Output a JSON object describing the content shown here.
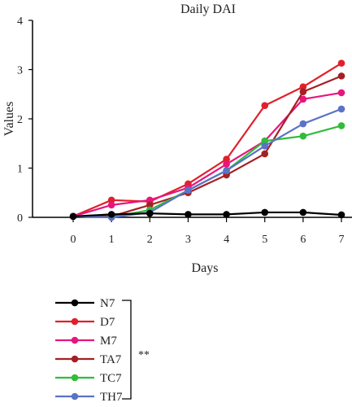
{
  "chart_data": {
    "type": "line",
    "title": "Daily DAI",
    "xlabel": "Days",
    "ylabel": "Values",
    "x": [
      0,
      1,
      2,
      3,
      4,
      5,
      6,
      7
    ],
    "xlim": [
      0,
      7
    ],
    "ylim": [
      0,
      4
    ],
    "yticks": [
      0,
      1,
      2,
      3,
      4
    ],
    "xticks": [
      0,
      1,
      2,
      3,
      4,
      5,
      6,
      7
    ],
    "grid": false,
    "legend_position": "bottom-left",
    "significance_label": "**",
    "series": [
      {
        "name": "N7",
        "color": "#000000",
        "values": [
          0.02,
          0.06,
          0.08,
          0.06,
          0.06,
          0.1,
          0.1,
          0.05
        ]
      },
      {
        "name": "D7",
        "color": "#e0202b",
        "values": [
          0.02,
          0.35,
          0.32,
          0.68,
          1.18,
          2.27,
          2.65,
          3.13
        ]
      },
      {
        "name": "M7",
        "color": "#e8157d",
        "values": [
          0.02,
          0.25,
          0.35,
          0.6,
          1.08,
          1.55,
          2.4,
          2.53
        ]
      },
      {
        "name": "TA7",
        "color": "#a52024",
        "values": [
          0.02,
          0.02,
          0.25,
          0.5,
          0.86,
          1.29,
          2.55,
          2.87
        ]
      },
      {
        "name": "TC7",
        "color": "#2fbd3a",
        "values": [
          0.02,
          0.0,
          0.15,
          0.55,
          0.95,
          1.55,
          1.65,
          1.86
        ]
      },
      {
        "name": "TH7",
        "color": "#5b72c6",
        "values": [
          0.02,
          0.0,
          0.1,
          0.55,
          0.95,
          1.45,
          1.9,
          2.2
        ]
      }
    ]
  }
}
